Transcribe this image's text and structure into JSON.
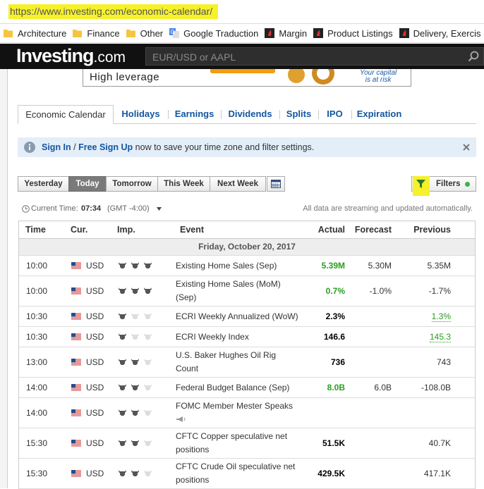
{
  "browser": {
    "url": "https://www.investing.com/economic-calendar/",
    "bookmarks": [
      {
        "label": "Architecture",
        "icon": "folder"
      },
      {
        "label": "Finance",
        "icon": "folder"
      },
      {
        "label": "Other",
        "icon": "folder"
      },
      {
        "label": "Google Traduction",
        "icon": "translate"
      },
      {
        "label": "Margin",
        "icon": "investing"
      },
      {
        "label": "Product Listings",
        "icon": "investing"
      },
      {
        "label": "Delivery, Exercis",
        "icon": "investing"
      }
    ]
  },
  "header": {
    "logo": "Investing",
    "logo_suffix": ".com",
    "search_placeholder": "EUR/USD or AAPL"
  },
  "ad": {
    "headline": "High leverage",
    "risk_line_1": "Your capital",
    "risk_line_2": "is at risk"
  },
  "tabs": {
    "items": [
      "Economic Calendar",
      "Holidays",
      "Earnings",
      "Dividends",
      "Splits",
      "IPO",
      "Expiration"
    ],
    "active": 0
  },
  "notice": {
    "sign_in": "Sign In",
    "separator": " / ",
    "sign_up": "Free Sign Up",
    "text": " now to save your time zone and filter settings."
  },
  "toolbar": {
    "days": [
      "Yesterday",
      "Today",
      "Tomorrow",
      "This Week",
      "Next Week"
    ],
    "active": 1,
    "filters": "Filters"
  },
  "time_info": {
    "label": "Current Time:",
    "time": "07:34",
    "zone": "(GMT -4:00)",
    "note": "All data are streaming and updated automatically."
  },
  "table": {
    "columns": [
      "Time",
      "Cur.",
      "Imp.",
      "Event",
      "Actual",
      "Forecast",
      "Previous"
    ],
    "date": "Friday, October 20, 2017",
    "rows": [
      {
        "time": "10:00",
        "currency": "USD",
        "importance": 3,
        "event": "Existing Home Sales (Sep)",
        "actual": "5.39M",
        "actual_color": "#2a9d1e",
        "forecast": "5.30M",
        "previous": "5.35M"
      },
      {
        "time": "10:00",
        "currency": "USD",
        "importance": 3,
        "event": "Existing Home Sales (MoM) (Sep)",
        "actual": "0.7%",
        "actual_color": "#2a9d1e",
        "forecast": "-1.0%",
        "previous": "-1.7%"
      },
      {
        "time": "10:30",
        "currency": "USD",
        "importance": 1,
        "event": "ECRI Weekly Annualized (WoW)",
        "actual": "2.3%",
        "actual_color": "#000000",
        "forecast": null,
        "previous": "1.3%",
        "previous_revised": true
      },
      {
        "time": "10:30",
        "currency": "USD",
        "importance": 1,
        "event": "ECRI Weekly Index",
        "actual": "146.6",
        "actual_color": "#000000",
        "forecast": null,
        "previous": "145.3",
        "previous_revised": true
      },
      {
        "time": "13:00",
        "currency": "USD",
        "importance": 2,
        "event": "U.S. Baker Hughes Oil Rig Count",
        "actual": "736",
        "actual_color": "#000000",
        "forecast": null,
        "previous": "743"
      },
      {
        "time": "14:00",
        "currency": "USD",
        "importance": 2,
        "event": "Federal Budget Balance (Sep)",
        "actual": "8.0B",
        "actual_color": "#2a9d1e",
        "forecast": "6.0B",
        "previous": "-108.0B"
      },
      {
        "time": "14:00",
        "currency": "USD",
        "importance": 2,
        "event": "FOMC Member Mester Speaks",
        "speech": true,
        "actual": null,
        "forecast": null,
        "previous": null
      },
      {
        "time": "15:30",
        "currency": "USD",
        "importance": 2,
        "event": "CFTC Copper speculative net positions",
        "actual": "51.5K",
        "actual_color": "#000000",
        "forecast": null,
        "previous": "40.7K"
      },
      {
        "time": "15:30",
        "currency": "USD",
        "importance": 2,
        "event": "CFTC Crude Oil speculative net positions",
        "actual": "429.5K",
        "actual_color": "#000000",
        "forecast": null,
        "previous": "417.1K"
      }
    ]
  }
}
